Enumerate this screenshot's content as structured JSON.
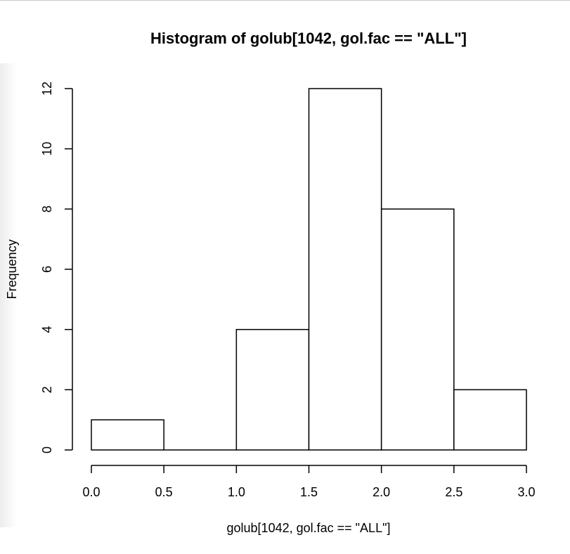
{
  "chart_data": {
    "type": "bar",
    "title": "Histogram of golub[1042, gol.fac == \"ALL\"]",
    "xlabel": "golub[1042, gol.fac == \"ALL\"]",
    "ylabel": "Frequency",
    "bins": [
      {
        "start": 0.0,
        "end": 0.5,
        "count": 1
      },
      {
        "start": 0.5,
        "end": 1.0,
        "count": 0
      },
      {
        "start": 1.0,
        "end": 1.5,
        "count": 4
      },
      {
        "start": 1.5,
        "end": 2.0,
        "count": 12
      },
      {
        "start": 2.0,
        "end": 2.5,
        "count": 8
      },
      {
        "start": 2.5,
        "end": 3.0,
        "count": 2
      }
    ],
    "xlim": [
      0.0,
      3.0
    ],
    "ylim": [
      0,
      12
    ],
    "xticks": [
      {
        "value": 0.0,
        "label": "0.0"
      },
      {
        "value": 0.5,
        "label": "0.5"
      },
      {
        "value": 1.0,
        "label": "1.0"
      },
      {
        "value": 1.5,
        "label": "1.5"
      },
      {
        "value": 2.0,
        "label": "2.0"
      },
      {
        "value": 2.5,
        "label": "2.5"
      },
      {
        "value": 3.0,
        "label": "3.0"
      }
    ],
    "yticks": [
      {
        "value": 0,
        "label": "0"
      },
      {
        "value": 2,
        "label": "2"
      },
      {
        "value": 4,
        "label": "4"
      },
      {
        "value": 6,
        "label": "6"
      },
      {
        "value": 8,
        "label": "8"
      },
      {
        "value": 10,
        "label": "10"
      },
      {
        "value": 12,
        "label": "12"
      }
    ],
    "grid": false,
    "legend": "none",
    "bar_fill": "#ffffff",
    "bar_stroke": "#000000"
  }
}
